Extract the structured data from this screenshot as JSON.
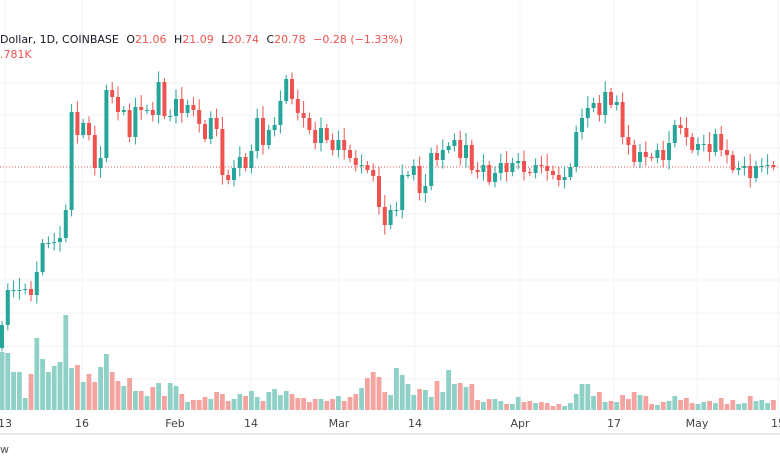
{
  "legend": {
    "symbol": "Dollar, 1D, COINBASE",
    "o_label": "O",
    "o": "21.06",
    "h_label": "H",
    "h": "21.09",
    "l_label": "L",
    "l": "20.74",
    "c_label": "C",
    "c": "20.78",
    "change": "−0.28 (−1.33%)",
    "volume": ".781K"
  },
  "footer": {
    "text": "w"
  },
  "colors": {
    "up": "#26a69a",
    "down": "#ef5350",
    "up_vol": "#8fd0c7",
    "down_vol": "#f3a3a0",
    "grid": "#f0f3fa"
  },
  "chart_data": {
    "type": "candlestick",
    "title": "Dollar, 1D, COINBASE",
    "x_tick_labels": [
      "13",
      "16",
      "Feb",
      "14",
      "Mar",
      "14",
      "Apr",
      "17",
      "May",
      "15"
    ],
    "last_price": 20.78,
    "first_open": 15.35,
    "closes": [
      16.04,
      17.09,
      17.09,
      17.09,
      17.12,
      16.94,
      17.63,
      18.5,
      18.5,
      18.53,
      18.65,
      19.49,
      22.43,
      21.74,
      22.1,
      21.74,
      20.75,
      21.05,
      23.09,
      22.88,
      22.43,
      22.49,
      21.68,
      22.58,
      22.49,
      22.49,
      22.34,
      23.33,
      22.31,
      22.31,
      22.82,
      22.4,
      22.64,
      22.49,
      22.07,
      21.62,
      22.25,
      21.92,
      20.54,
      20.39,
      20.75,
      21.08,
      20.75,
      21.26,
      22.25,
      21.44,
      21.89,
      22.04,
      22.76,
      23.42,
      22.82,
      22.4,
      22.25,
      21.89,
      21.5,
      21.95,
      21.59,
      21.29,
      21.59,
      21.29,
      21.05,
      20.84,
      20.84,
      20.69,
      20.51,
      19.58,
      19.04,
      19.49,
      19.49,
      20.54,
      20.54,
      20.81,
      20.0,
      20.21,
      21.2,
      20.99,
      21.29,
      21.41,
      21.59,
      21.05,
      21.44,
      20.69,
      20.63,
      20.84,
      20.33,
      20.6,
      20.9,
      20.63,
      20.9,
      20.96,
      20.63,
      20.6,
      20.84,
      20.81,
      20.66,
      20.54,
      20.39,
      20.48,
      20.78,
      21.83,
      22.25,
      22.55,
      22.7,
      22.34,
      23.03,
      22.64,
      22.73,
      21.68,
      21.44,
      20.93,
      21.23,
      21.08,
      21.05,
      21.29,
      20.99,
      21.5,
      22.04,
      21.95,
      21.68,
      21.29,
      21.47,
      21.47,
      21.23,
      21.77,
      21.29,
      21.14,
      20.69,
      20.75,
      20.81,
      20.45,
      20.81,
      20.81,
      20.84,
      20.78
    ],
    "volumes": [
      5.8,
      5.7,
      3.8,
      3.8,
      1.2,
      3.6,
      7.2,
      5.1,
      3.8,
      4.4,
      4.8,
      9.5,
      4.2,
      4.5,
      2.8,
      3.6,
      2.8,
      4.3,
      5.6,
      3.8,
      2.9,
      2.4,
      3.2,
      1.9,
      1.9,
      1.4,
      2.3,
      2.7,
      1.4,
      2.7,
      2.4,
      1.6,
      0.8,
      1.0,
      1.0,
      1.3,
      1.1,
      1.8,
      1.6,
      0.9,
      1.1,
      1.6,
      1.4,
      1.9,
      1.3,
      0.9,
      1.8,
      2.1,
      1.5,
      1.9,
      1.6,
      1.2,
      1.2,
      0.8,
      1.1,
      1.1,
      0.9,
      1.1,
      1.4,
      0.9,
      1.3,
      1.6,
      2.2,
      3.2,
      3.8,
      3.3,
      1.8,
      1.5,
      4.2,
      3.5,
      2.6,
      1.5,
      2.1,
      2.0,
      1.3,
      2.9,
      1.8,
      4.0,
      2.6,
      2.7,
      2.3,
      2.6,
      1.0,
      0.8,
      1.1,
      1.1,
      0.9,
      0.6,
      0.6,
      1.3,
      0.8,
      0.9,
      0.7,
      0.8,
      0.7,
      0.4,
      0.6,
      0.4,
      0.7,
      1.6,
      2.6,
      2.6,
      1.4,
      1.8,
      0.8,
      0.9,
      0.8,
      1.5,
      1.1,
      1.8,
      1.5,
      1.4,
      0.6,
      0.5,
      0.8,
      0.9,
      1.4,
      1.0,
      1.2,
      0.7,
      0.6,
      0.8,
      0.9,
      0.7,
      1.2,
      0.6,
      1.0,
      0.6,
      0.7,
      1.4,
      0.9,
      1.0,
      0.7,
      1.0
    ],
    "grid": true
  }
}
